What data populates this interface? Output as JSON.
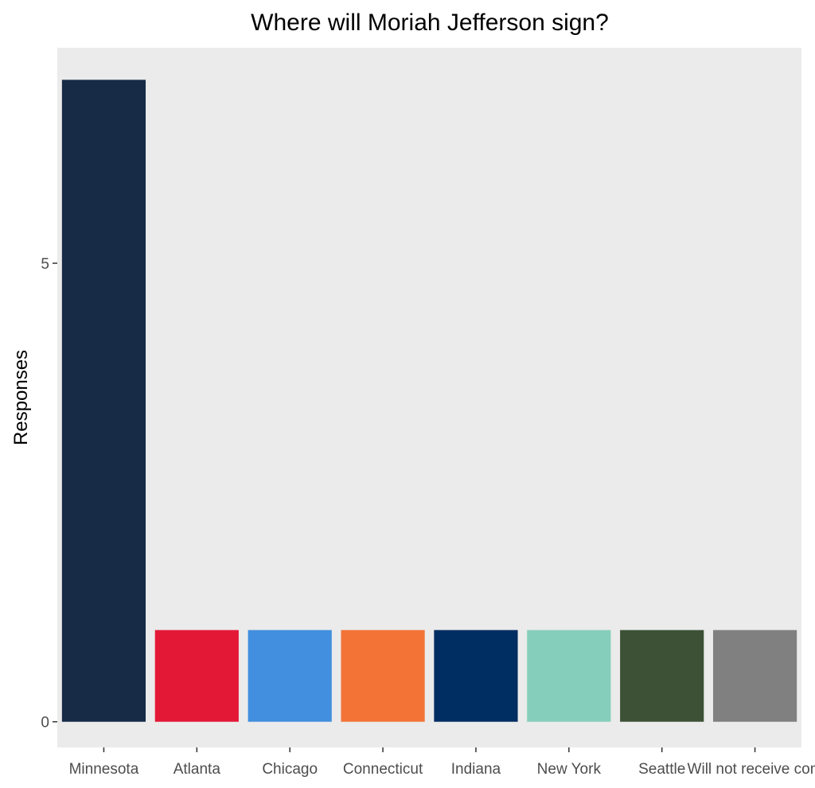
{
  "chart_data": {
    "type": "bar",
    "title": "Where will Moriah Jefferson sign?",
    "xlabel": "",
    "ylabel": "Responses",
    "categories": [
      "Minnesota",
      "Atlanta",
      "Chicago",
      "Connecticut",
      "Indiana",
      "New York",
      "Seattle",
      "Will not receive cont"
    ],
    "values": [
      7,
      1,
      1,
      1,
      1,
      1,
      1,
      1
    ],
    "colors": [
      "#172b47",
      "#e31837",
      "#418fde",
      "#f37337",
      "#002d62",
      "#86cebc",
      "#3c5135",
      "#808080"
    ],
    "yticks": [
      0,
      5
    ],
    "ylim": [
      -0.28,
      7.35
    ],
    "grid": false,
    "legend": "none",
    "panel_background": "#ebebeb"
  }
}
